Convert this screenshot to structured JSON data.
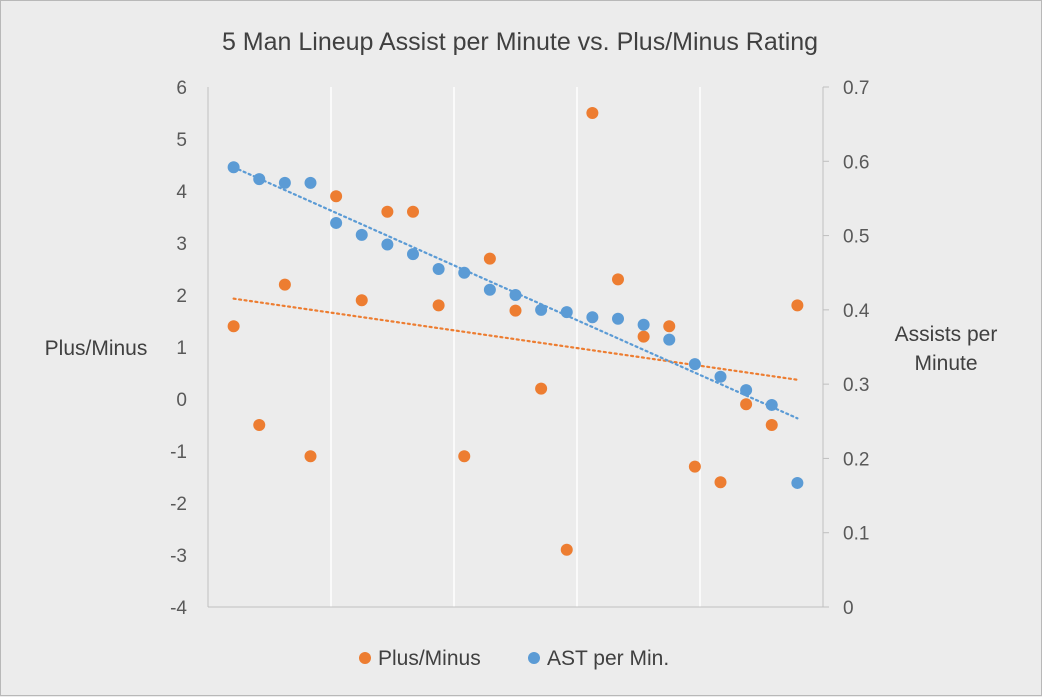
{
  "chart_data": {
    "type": "scatter",
    "title": "5 Man Lineup Assist per Minute vs. Plus/Minus Rating",
    "y_left_label": "Plus/Minus",
    "y_right_label_lines": [
      "Assists per",
      "Minute"
    ],
    "y_left_lim": [
      -4,
      6
    ],
    "y_left_ticks": [
      "6",
      "5",
      "4",
      "3",
      "2",
      "1",
      "0",
      "-1",
      "-2",
      "-3",
      "-4"
    ],
    "y_right_lim": [
      0,
      0.7
    ],
    "y_right_ticks": [
      "0.7",
      "0.6",
      "0.5",
      "0.4",
      "0.3",
      "0.2",
      "0.1",
      "0"
    ],
    "x": [
      1,
      2,
      3,
      4,
      5,
      6,
      7,
      8,
      9,
      10,
      11,
      12,
      13,
      14,
      15,
      16,
      17,
      18,
      19,
      20,
      21,
      22,
      23
    ],
    "grid": "vertical",
    "legend_position": "bottom",
    "series": [
      {
        "name": "Plus/Minus",
        "axis": "left",
        "color": "#ed7d31",
        "values": [
          1.4,
          -0.5,
          2.2,
          -1.1,
          3.9,
          1.9,
          3.6,
          3.6,
          1.8,
          -1.1,
          2.7,
          1.7,
          0.2,
          -2.9,
          5.5,
          2.3,
          1.2,
          1.4,
          -1.3,
          -1.6,
          -0.1,
          -0.5,
          1.8
        ],
        "trendline": {
          "type": "linear",
          "start": 1.93,
          "end": 0.37
        }
      },
      {
        "name": "AST per Min.",
        "axis": "right",
        "color": "#5b9bd5",
        "values": [
          0.592,
          0.576,
          0.571,
          0.571,
          0.517,
          0.501,
          0.488,
          0.475,
          0.455,
          0.45,
          0.427,
          0.42,
          0.4,
          0.397,
          0.39,
          0.388,
          0.38,
          0.36,
          0.327,
          0.31,
          0.292,
          0.272,
          0.167
        ],
        "trendline": {
          "type": "linear",
          "start": 0.592,
          "end": 0.254
        }
      }
    ]
  }
}
